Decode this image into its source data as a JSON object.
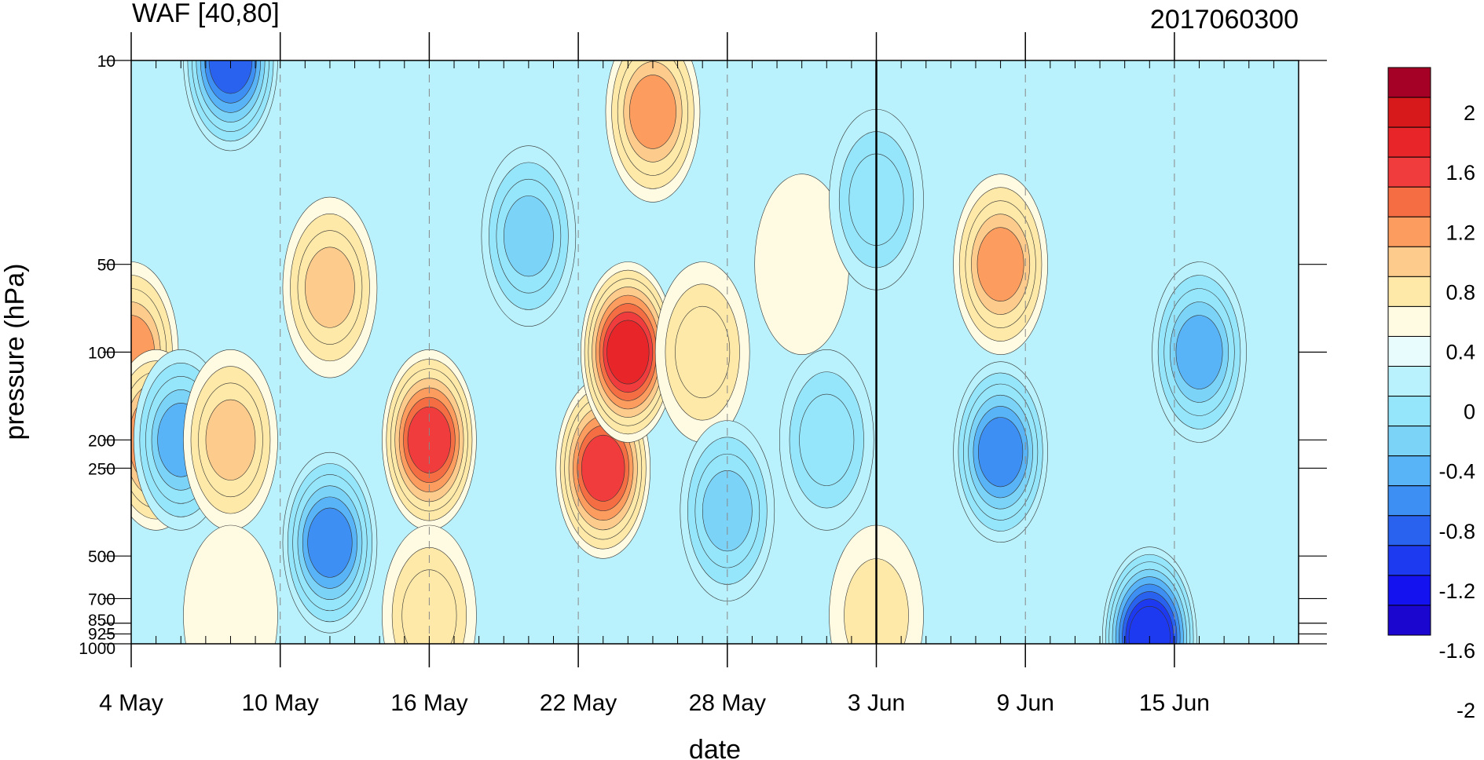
{
  "chart_data": {
    "type": "heatmap",
    "title_left": "WAF [40,80]",
    "title_right": "2017060300",
    "xlabel": "date",
    "ylabel": "pressure (hPa)",
    "x_range": [
      "4 May",
      "20 Jun"
    ],
    "x_ticks": [
      "4 May",
      "10 May",
      "16 May",
      "22 May",
      "28 May",
      "3 Jun",
      "9 Jun",
      "15 Jun"
    ],
    "y_scale": "log",
    "y_range": [
      1000,
      10
    ],
    "y_ticks": [
      "10",
      "50",
      "100",
      "200",
      "250",
      "500",
      "700",
      "850",
      "925",
      "1000"
    ],
    "reference_line": "3 Jun",
    "colorbar_labels": [
      "2",
      "1.6",
      "1.2",
      "0.8",
      "0.4",
      "0",
      "-0.4",
      "-0.8",
      "-1.2",
      "-1.6",
      "-2"
    ],
    "colorbar_colors": [
      "#a50026",
      "#d7191c",
      "#e8262a",
      "#f03c3c",
      "#f46d43",
      "#fc9d5f",
      "#fdcb8b",
      "#fee9a8",
      "#fffbe3",
      "#e8fcfe",
      "#b9f2fc",
      "#96e6fb",
      "#7cd3f8",
      "#58b4f6",
      "#3d8ff4",
      "#2a62f0",
      "#1e3af0",
      "#1412ef",
      "#1a06cf"
    ],
    "blobs": [
      {
        "date": "4 May",
        "p": 100,
        "v": 1.0
      },
      {
        "date": "5 May",
        "p": 200,
        "v": 1.1
      },
      {
        "date": "6 May",
        "p": 200,
        "v": -0.9
      },
      {
        "date": "8 May",
        "p": 200,
        "v": 0.8
      },
      {
        "date": "8 May",
        "p": 10,
        "v": -1.3
      },
      {
        "date": "8 May",
        "p": 800,
        "v": 0.3
      },
      {
        "date": "12 May",
        "p": 60,
        "v": 0.8
      },
      {
        "date": "12 May",
        "p": 450,
        "v": -1.1
      },
      {
        "date": "16 May",
        "p": 200,
        "v": 1.3
      },
      {
        "date": "16 May",
        "p": 800,
        "v": 0.5
      },
      {
        "date": "20 May",
        "p": 40,
        "v": -0.8
      },
      {
        "date": "23 May",
        "p": 250,
        "v": 1.3
      },
      {
        "date": "24 May",
        "p": 100,
        "v": 1.5
      },
      {
        "date": "25 May",
        "p": 15,
        "v": 1.0
      },
      {
        "date": "27 May",
        "p": 100,
        "v": 0.6
      },
      {
        "date": "28 May",
        "p": 350,
        "v": -0.8
      },
      {
        "date": "31 May",
        "p": 50,
        "v": 0.3
      },
      {
        "date": "1 Jun",
        "p": 200,
        "v": -0.7
      },
      {
        "date": "3 Jun",
        "p": 800,
        "v": 0.4
      },
      {
        "date": "3 Jun",
        "p": 30,
        "v": -0.6
      },
      {
        "date": "8 Jun",
        "p": 50,
        "v": 0.9
      },
      {
        "date": "8 Jun",
        "p": 220,
        "v": -1.1
      },
      {
        "date": "14 Jun",
        "p": 950,
        "v": -1.8
      },
      {
        "date": "16 Jun",
        "p": 100,
        "v": -1.0
      }
    ]
  }
}
